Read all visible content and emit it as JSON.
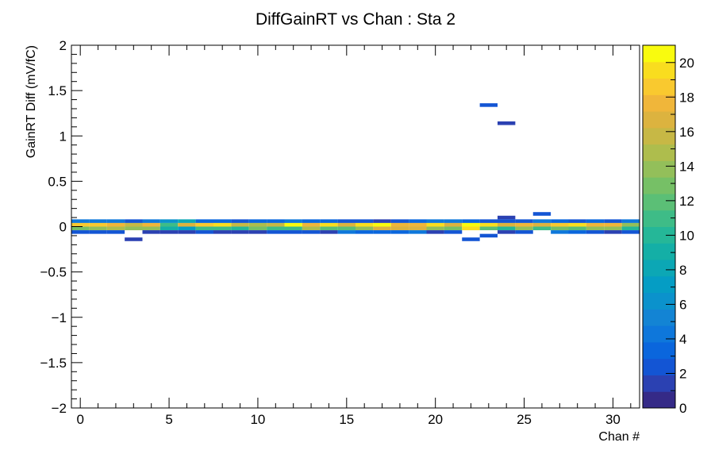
{
  "chart_data": {
    "type": "heatmap",
    "title": "DiffGainRT vs Chan : Sta 2",
    "xlabel": "Chan #",
    "ylabel": "GainRT Diff (mV/fC)",
    "xlim": [
      -0.5,
      31.5
    ],
    "ylim": [
      -2,
      2
    ],
    "zlim": [
      0,
      21
    ],
    "bin_height": 0.04,
    "x_ticks": [
      0,
      5,
      10,
      15,
      20,
      25,
      30
    ],
    "y_ticks": [
      -2,
      -1.5,
      -1,
      -0.5,
      0,
      0.5,
      1,
      1.5,
      2
    ],
    "y_tick_labels": [
      "−2",
      "−1.5",
      "−1",
      "−0.5",
      "0",
      "0.5",
      "1",
      "1.5",
      "2"
    ],
    "z_ticks": [
      0,
      2,
      4,
      6,
      8,
      10,
      12,
      14,
      16,
      18,
      20
    ],
    "palette": [
      "#352a87",
      "#2b41b2",
      "#1355d4",
      "#0a66dd",
      "#0e77db",
      "#1384d4",
      "#0b92cc",
      "#059dc4",
      "#0ca7b5",
      "#14afa6",
      "#25b798",
      "#3ebc87",
      "#5bbf76",
      "#76c066",
      "#93bf5a",
      "#aebd4d",
      "#c7b845",
      "#dcb33f",
      "#f0b63a",
      "#f9c92f",
      "#f9dd1f",
      "#f9fb0e"
    ],
    "bins": [
      [
        0,
        0.06,
        4
      ],
      [
        0,
        0.02,
        19
      ],
      [
        0,
        -0.02,
        13
      ],
      [
        0,
        -0.06,
        2
      ],
      [
        1,
        0.06,
        4
      ],
      [
        1,
        0.02,
        19
      ],
      [
        1,
        -0.02,
        14
      ],
      [
        1,
        -0.06,
        2
      ],
      [
        2,
        0.06,
        4
      ],
      [
        2,
        0.02,
        18
      ],
      [
        2,
        -0.02,
        15
      ],
      [
        2,
        -0.06,
        2
      ],
      [
        3,
        0.06,
        2
      ],
      [
        3,
        0.02,
        16
      ],
      [
        3,
        -0.02,
        14
      ],
      [
        3,
        -0.14,
        1
      ],
      [
        4,
        0.06,
        4
      ],
      [
        4,
        0.02,
        18
      ],
      [
        4,
        -0.02,
        14
      ],
      [
        4,
        -0.06,
        1
      ],
      [
        5,
        0.06,
        6
      ],
      [
        5,
        0.02,
        11
      ],
      [
        5,
        -0.02,
        9
      ],
      [
        5,
        -0.06,
        1
      ],
      [
        6,
        0.06,
        8
      ],
      [
        6,
        0.02,
        17
      ],
      [
        6,
        -0.02,
        7
      ],
      [
        6,
        -0.06,
        1
      ],
      [
        7,
        0.06,
        3
      ],
      [
        7,
        0.02,
        19
      ],
      [
        7,
        -0.02,
        11
      ],
      [
        7,
        -0.06,
        2
      ],
      [
        8,
        0.06,
        3
      ],
      [
        8,
        0.02,
        20
      ],
      [
        8,
        -0.02,
        11
      ],
      [
        8,
        -0.06,
        1
      ],
      [
        9,
        0.06,
        2
      ],
      [
        9,
        0.02,
        16
      ],
      [
        9,
        -0.02,
        10
      ],
      [
        9,
        -0.06,
        1
      ],
      [
        10,
        0.06,
        3
      ],
      [
        10,
        0.02,
        15
      ],
      [
        10,
        -0.02,
        13
      ],
      [
        10,
        -0.06,
        1
      ],
      [
        11,
        0.06,
        3
      ],
      [
        11,
        0.02,
        16
      ],
      [
        11,
        -0.02,
        11
      ],
      [
        11,
        -0.06,
        2
      ],
      [
        12,
        0.06,
        4
      ],
      [
        12,
        0.02,
        21
      ],
      [
        12,
        -0.02,
        11
      ],
      [
        12,
        -0.06,
        2
      ],
      [
        13,
        0.06,
        3
      ],
      [
        13,
        0.02,
        18
      ],
      [
        13,
        -0.02,
        15
      ],
      [
        13,
        -0.06,
        2
      ],
      [
        14,
        0.06,
        3
      ],
      [
        14,
        0.02,
        20
      ],
      [
        14,
        -0.02,
        12
      ],
      [
        14,
        -0.06,
        1
      ],
      [
        15,
        0.06,
        2
      ],
      [
        15,
        0.02,
        17
      ],
      [
        15,
        -0.02,
        12
      ],
      [
        15,
        -0.06,
        4
      ],
      [
        16,
        0.06,
        2
      ],
      [
        16,
        0.02,
        20
      ],
      [
        16,
        -0.02,
        14
      ],
      [
        16,
        -0.06,
        3
      ],
      [
        17,
        0.06,
        1
      ],
      [
        17,
        0.02,
        21
      ],
      [
        17,
        -0.02,
        17
      ],
      [
        17,
        -0.06,
        3
      ],
      [
        18,
        0.06,
        2
      ],
      [
        18,
        0.02,
        18
      ],
      [
        18,
        -0.02,
        17
      ],
      [
        18,
        -0.06,
        3
      ],
      [
        19,
        0.06,
        3
      ],
      [
        19,
        0.02,
        18
      ],
      [
        19,
        -0.02,
        17
      ],
      [
        19,
        -0.06,
        4
      ],
      [
        20,
        0.06,
        4
      ],
      [
        20,
        0.02,
        20
      ],
      [
        20,
        -0.02,
        14
      ],
      [
        20,
        -0.06,
        1
      ],
      [
        21,
        0.06,
        4
      ],
      [
        21,
        0.02,
        17
      ],
      [
        21,
        -0.02,
        13
      ],
      [
        21,
        -0.06,
        2
      ],
      [
        22,
        0.06,
        3
      ],
      [
        22,
        0.02,
        21
      ],
      [
        22,
        -0.02,
        20
      ],
      [
        22,
        -0.14,
        2
      ],
      [
        23,
        1.34,
        2
      ],
      [
        23,
        0.06,
        2
      ],
      [
        23,
        0.02,
        20
      ],
      [
        23,
        -0.02,
        12
      ],
      [
        23,
        -0.1,
        2
      ],
      [
        24,
        1.14,
        1
      ],
      [
        24,
        0.1,
        1
      ],
      [
        24,
        0.06,
        2
      ],
      [
        24,
        0.02,
        17
      ],
      [
        24,
        -0.02,
        10
      ],
      [
        24,
        -0.06,
        1
      ],
      [
        25,
        0.06,
        2
      ],
      [
        25,
        0.02,
        18
      ],
      [
        25,
        -0.02,
        14
      ],
      [
        25,
        -0.06,
        2
      ],
      [
        26,
        0.14,
        2
      ],
      [
        26,
        0.06,
        4
      ],
      [
        26,
        0.02,
        17
      ],
      [
        26,
        -0.02,
        11
      ],
      [
        27,
        0.06,
        3
      ],
      [
        27,
        0.02,
        19
      ],
      [
        27,
        -0.02,
        13
      ],
      [
        27,
        -0.06,
        4
      ],
      [
        28,
        0.06,
        2
      ],
      [
        28,
        0.02,
        20
      ],
      [
        28,
        -0.02,
        12
      ],
      [
        28,
        -0.06,
        3
      ],
      [
        29,
        0.06,
        3
      ],
      [
        29,
        0.02,
        18
      ],
      [
        29,
        -0.02,
        14
      ],
      [
        29,
        -0.06,
        2
      ],
      [
        30,
        0.06,
        2
      ],
      [
        30,
        0.02,
        18
      ],
      [
        30,
        -0.02,
        14
      ],
      [
        30,
        -0.06,
        1
      ],
      [
        31,
        0.06,
        4
      ],
      [
        31,
        0.02,
        14
      ],
      [
        31,
        -0.02,
        10
      ],
      [
        31,
        -0.06,
        2
      ]
    ]
  }
}
